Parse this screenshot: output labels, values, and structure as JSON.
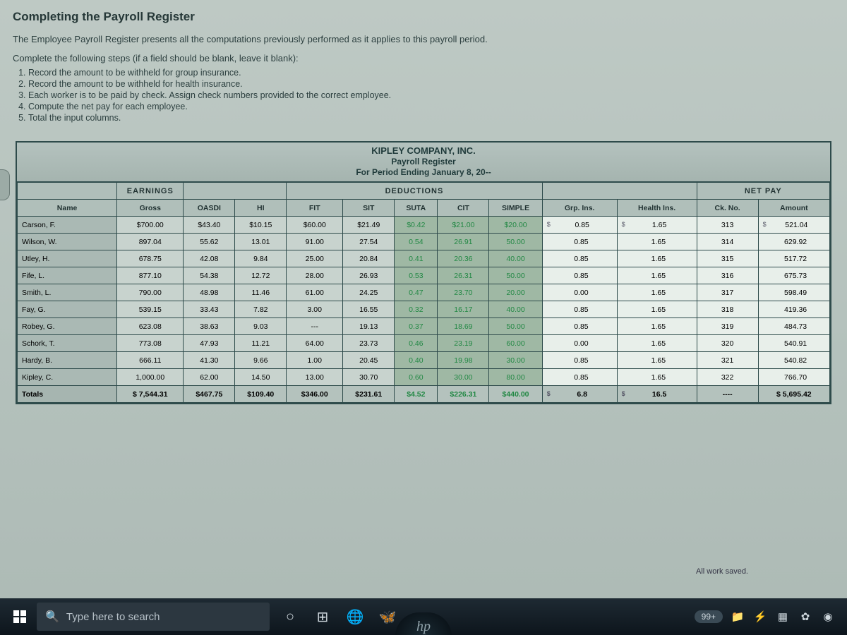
{
  "page": {
    "title": "Completing the Payroll Register",
    "subtitle": "The Employee Payroll Register presents all the computations previously performed as it applies to this payroll period.",
    "steps_intro": "Complete the following steps (if a field should be blank, leave it blank):",
    "steps": [
      "Record the amount to be withheld for group insurance.",
      "Record the amount to be withheld for health insurance.",
      "Each worker is to be paid by check. Assign check numbers provided to the correct employee.",
      "Compute the net pay for each employee.",
      "Total the input columns."
    ],
    "saved_msg": "All work saved."
  },
  "register": {
    "company": "KIPLEY COMPANY, INC.",
    "doc": "Payroll Register",
    "period": "For Period Ending January 8, 20--",
    "sections": {
      "earnings": "EARNINGS",
      "deductions": "DEDUCTIONS",
      "netpay": "NET PAY"
    },
    "columns": {
      "name": "Name",
      "gross": "Gross",
      "oasdi": "OASDI",
      "hi": "HI",
      "fit": "FIT",
      "sit": "SIT",
      "suta": "SUTA",
      "cit": "CIT",
      "simple": "SIMPLE",
      "grp": "Grp. Ins.",
      "health": "Health Ins.",
      "ck": "Ck. No.",
      "amount": "Amount"
    },
    "rows": [
      {
        "name": "Carson, F.",
        "gross": "$700.00",
        "oasdi": "$43.40",
        "hi": "$10.15",
        "fit": "$60.00",
        "sit": "$21.49",
        "suta": "$0.42",
        "cit": "$21.00",
        "simple": "$20.00",
        "grp": "0.85",
        "health": "1.65",
        "ck": "313",
        "amount": "521.04"
      },
      {
        "name": "Wilson, W.",
        "gross": "897.04",
        "oasdi": "55.62",
        "hi": "13.01",
        "fit": "91.00",
        "sit": "27.54",
        "suta": "0.54",
        "cit": "26.91",
        "simple": "50.00",
        "grp": "0.85",
        "health": "1.65",
        "ck": "314",
        "amount": "629.92"
      },
      {
        "name": "Utley, H.",
        "gross": "678.75",
        "oasdi": "42.08",
        "hi": "9.84",
        "fit": "25.00",
        "sit": "20.84",
        "suta": "0.41",
        "cit": "20.36",
        "simple": "40.00",
        "grp": "0.85",
        "health": "1.65",
        "ck": "315",
        "amount": "517.72"
      },
      {
        "name": "Fife, L.",
        "gross": "877.10",
        "oasdi": "54.38",
        "hi": "12.72",
        "fit": "28.00",
        "sit": "26.93",
        "suta": "0.53",
        "cit": "26.31",
        "simple": "50.00",
        "grp": "0.85",
        "health": "1.65",
        "ck": "316",
        "amount": "675.73"
      },
      {
        "name": "Smith, L.",
        "gross": "790.00",
        "oasdi": "48.98",
        "hi": "11.46",
        "fit": "61.00",
        "sit": "24.25",
        "suta": "0.47",
        "cit": "23.70",
        "simple": "20.00",
        "grp": "0.00",
        "health": "1.65",
        "ck": "317",
        "amount": "598.49"
      },
      {
        "name": "Fay, G.",
        "gross": "539.15",
        "oasdi": "33.43",
        "hi": "7.82",
        "fit": "3.00",
        "sit": "16.55",
        "suta": "0.32",
        "cit": "16.17",
        "simple": "40.00",
        "grp": "0.85",
        "health": "1.65",
        "ck": "318",
        "amount": "419.36"
      },
      {
        "name": "Robey, G.",
        "gross": "623.08",
        "oasdi": "38.63",
        "hi": "9.03",
        "fit": "---",
        "sit": "19.13",
        "suta": "0.37",
        "cit": "18.69",
        "simple": "50.00",
        "grp": "0.85",
        "health": "1.65",
        "ck": "319",
        "amount": "484.73"
      },
      {
        "name": "Schork, T.",
        "gross": "773.08",
        "oasdi": "47.93",
        "hi": "11.21",
        "fit": "64.00",
        "sit": "23.73",
        "suta": "0.46",
        "cit": "23.19",
        "simple": "60.00",
        "grp": "0.00",
        "health": "1.65",
        "ck": "320",
        "amount": "540.91"
      },
      {
        "name": "Hardy, B.",
        "gross": "666.11",
        "oasdi": "41.30",
        "hi": "9.66",
        "fit": "1.00",
        "sit": "20.45",
        "suta": "0.40",
        "cit": "19.98",
        "simple": "30.00",
        "grp": "0.85",
        "health": "1.65",
        "ck": "321",
        "amount": "540.82"
      },
      {
        "name": "Kipley, C.",
        "gross": "1,000.00",
        "oasdi": "62.00",
        "hi": "14.50",
        "fit": "13.00",
        "sit": "30.70",
        "suta": "0.60",
        "cit": "30.00",
        "simple": "80.00",
        "grp": "0.85",
        "health": "1.65",
        "ck": "322",
        "amount": "766.70"
      }
    ],
    "totals": {
      "name": "Totals",
      "gross": "$ 7,544.31",
      "oasdi": "$467.75",
      "hi": "$109.40",
      "fit": "$346.00",
      "sit": "$231.61",
      "suta": "$4.52",
      "cit": "$226.31",
      "simple": "$440.00",
      "grp": "6.8",
      "health": "16.5",
      "ck": "----",
      "amount": "$ 5,695.42"
    }
  },
  "taskbar": {
    "search_placeholder": "Type here to search",
    "badge": "99+"
  },
  "brand": "hp",
  "colors": {
    "page_bg": "#b5c2bd",
    "border": "#2e4b4b",
    "cell_num": "#c8d3ce",
    "cell_green": "#9fb8a4",
    "cell_input": "#e8efea",
    "taskbar": "#14202a"
  }
}
